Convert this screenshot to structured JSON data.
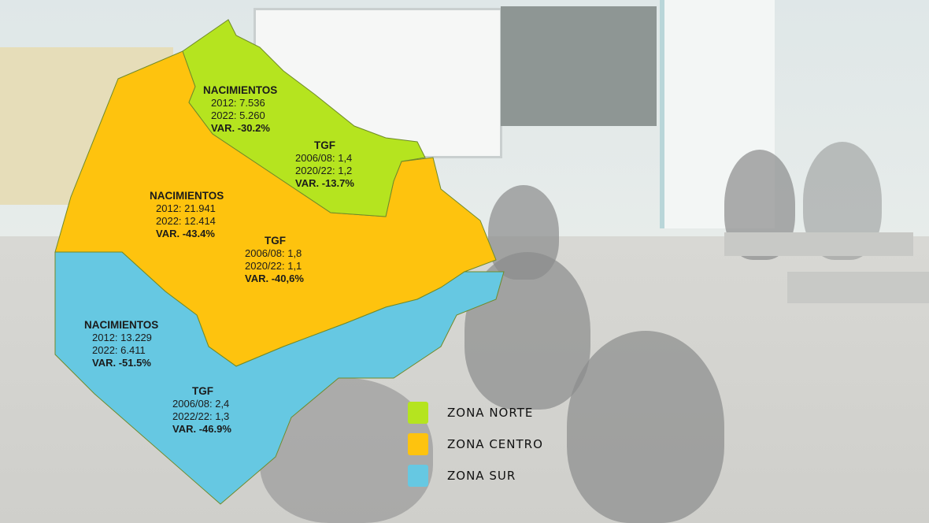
{
  "colors": {
    "norte": "#b5e41f",
    "centro": "#fec30e",
    "sur": "#66c8e2"
  },
  "zones": {
    "norte": {
      "nacimientos": {
        "title": "NACIMIENTOS",
        "y2012": "2012: 7.536",
        "y2022": "2022: 5.260",
        "var": "VAR. -30.2%"
      },
      "tgf": {
        "title": "TGF",
        "p1": "2006/08: 1,4",
        "p2": "2020/22: 1,2",
        "var": "VAR. -13.7%"
      }
    },
    "centro": {
      "nacimientos": {
        "title": "NACIMIENTOS",
        "y2012": "2012: 21.941",
        "y2022": "2022: 12.414",
        "var": "VAR. -43.4%"
      },
      "tgf": {
        "title": "TGF",
        "p1": "2006/08: 1,8",
        "p2": "2020/22: 1,1",
        "var": "VAR. -40,6%"
      }
    },
    "sur": {
      "nacimientos": {
        "title": "NACIMIENTOS",
        "y2012": "2012: 13.229",
        "y2022": "2022: 6.411",
        "var": "VAR. -51.5%"
      },
      "tgf": {
        "title": "TGF",
        "p1": "2006/08: 2,4",
        "p2": "2022/22: 1,3",
        "var": "VAR. -46.9%"
      }
    }
  },
  "legend": [
    {
      "label": "ZONA NORTE",
      "color": "#b5e41f"
    },
    {
      "label": "ZONA CENTRO",
      "color": "#fec30e"
    },
    {
      "label": "ZONA SUR",
      "color": "#66c8e2"
    }
  ]
}
